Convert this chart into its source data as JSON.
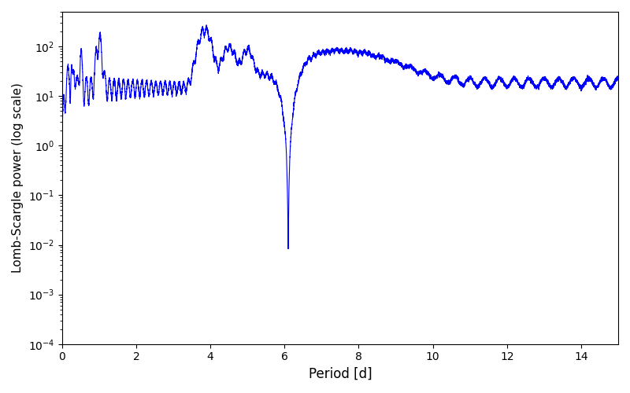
{
  "title": "",
  "xlabel": "Period [d]",
  "ylabel": "Lomb-Scargle power (log scale)",
  "line_color": "#0000ff",
  "line_width": 0.8,
  "xlim": [
    0,
    15
  ],
  "ylim": [
    0.0001,
    500
  ],
  "xmin": 0.01,
  "xmax": 15.0,
  "n_points": 8000,
  "background_color": "#ffffff",
  "figsize": [
    8.0,
    5.0
  ],
  "dpi": 100
}
